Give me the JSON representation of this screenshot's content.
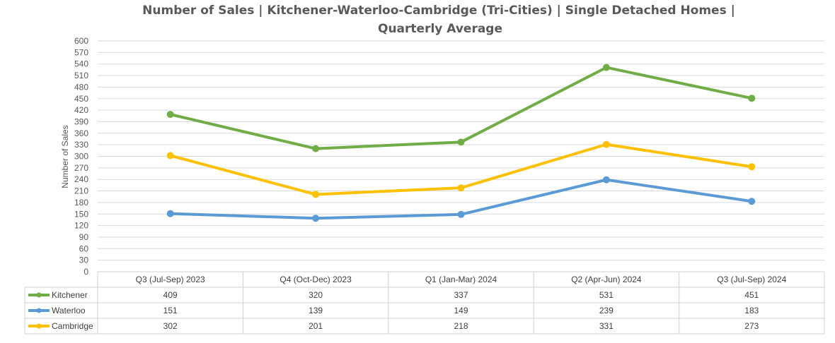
{
  "chart_data": {
    "type": "line",
    "title_line1": "Number of Sales | Kitchener-Waterloo-Cambridge (Tri-Cities) | Single Detached Homes |",
    "title_line2": "Quarterly Average",
    "ylabel": "Number of Sales",
    "xlabel": "",
    "ylim": [
      0,
      600
    ],
    "ytick_step": 30,
    "grid": true,
    "legend": "data-table",
    "categories": [
      "Q3 (Jul-Sep) 2023",
      "Q4 (Oct-Dec) 2023",
      "Q1 (Jan-Mar) 2024",
      "Q2 (Apr-Jun) 2024",
      "Q3 (Jul-Sep) 2024"
    ],
    "series": [
      {
        "name": "Kitchener",
        "color": "#70ad47",
        "values": [
          409,
          320,
          337,
          531,
          451
        ]
      },
      {
        "name": "Waterloo",
        "color": "#5b9bd5",
        "values": [
          151,
          139,
          149,
          239,
          183
        ]
      },
      {
        "name": "Cambridge",
        "color": "#ffc000",
        "values": [
          302,
          201,
          218,
          331,
          273
        ]
      }
    ]
  }
}
